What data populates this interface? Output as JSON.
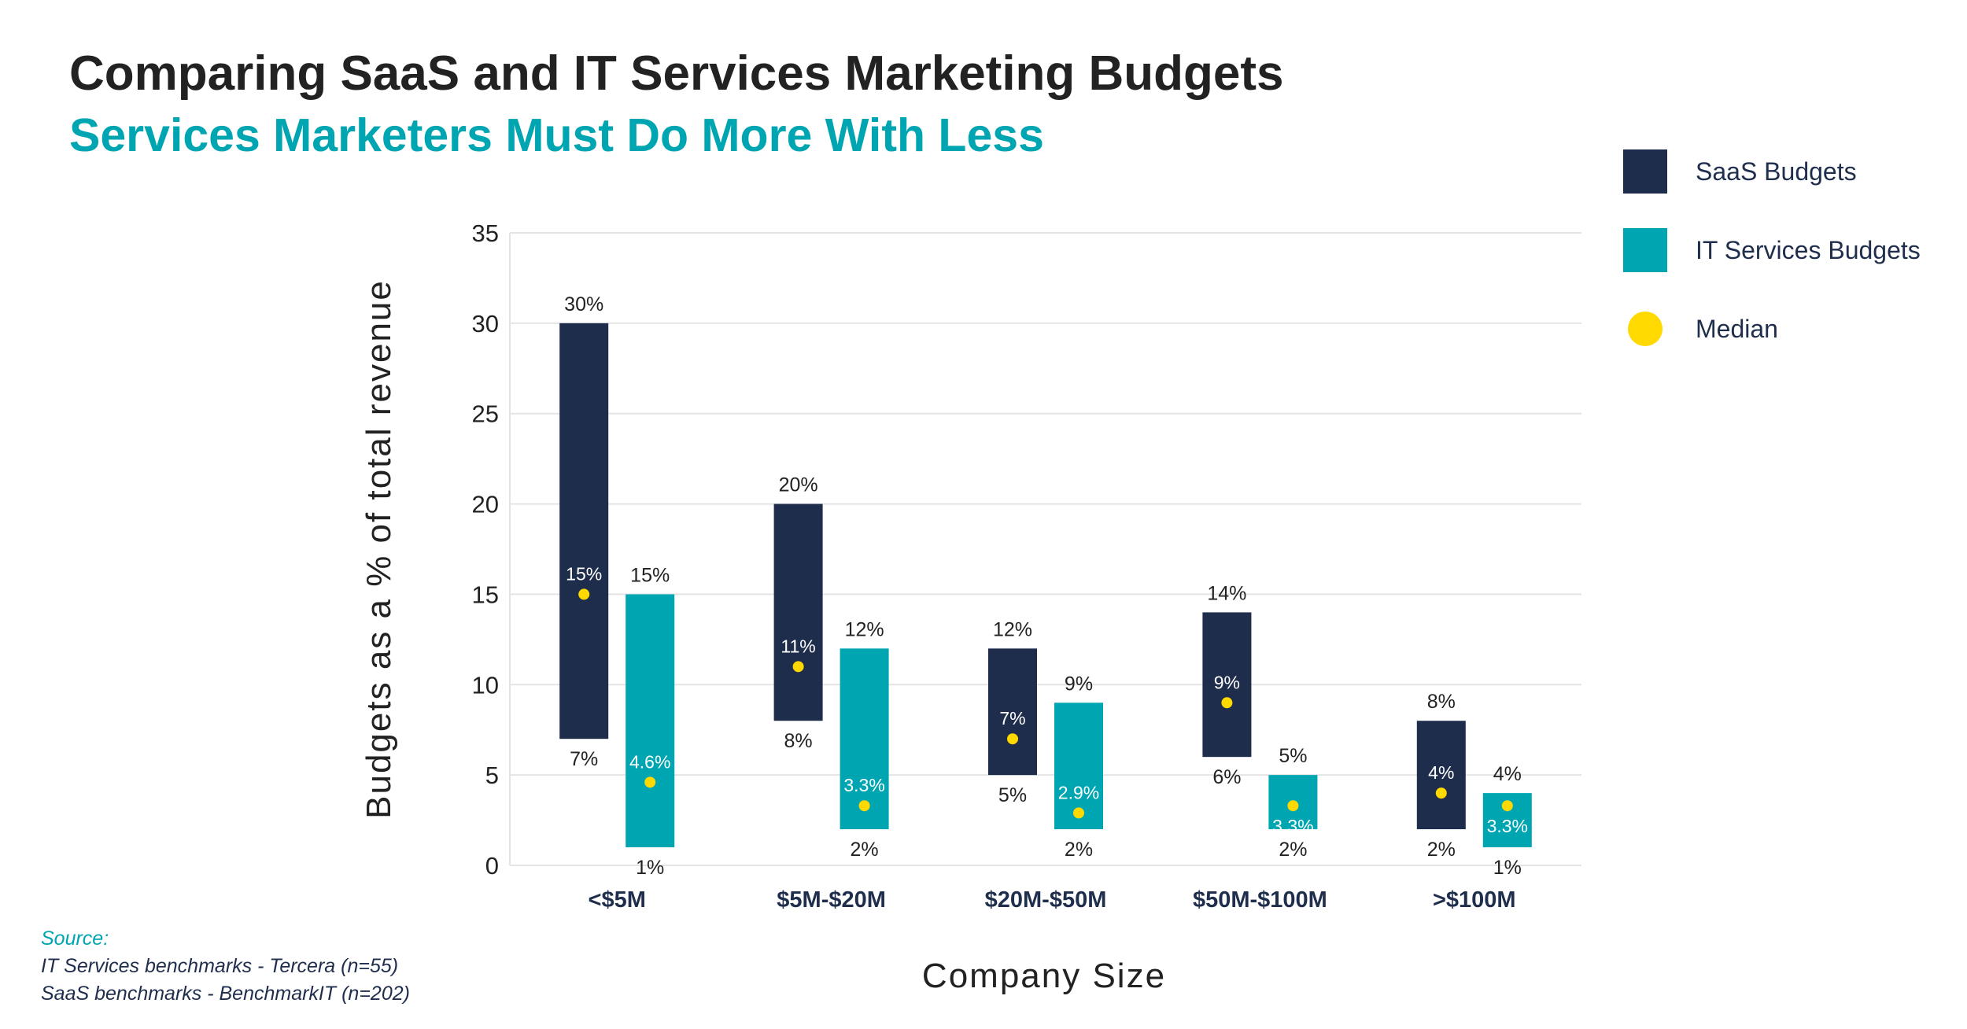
{
  "header": {
    "title": "Comparing SaaS and IT Services Marketing Budgets",
    "subtitle": "Services Marketers Must Do More With Less"
  },
  "legend": {
    "items": [
      {
        "label": "SaaS Budgets",
        "color": "#1f2d4d",
        "shape": "square"
      },
      {
        "label": "IT Services Budgets",
        "color": "#00a5b2",
        "shape": "square"
      },
      {
        "label": "Median",
        "color": "#ffd900",
        "shape": "circle"
      }
    ]
  },
  "source": {
    "heading": "Source:",
    "lines": [
      "IT Services benchmarks - Tercera (n=55)",
      "SaaS benchmarks - BenchmarkIT (n=202)"
    ]
  },
  "chart_data": {
    "type": "bar",
    "subtype": "floating range bar with median marker",
    "xlabel": "Company Size",
    "ylabel": "Budgets as a % of total revenue",
    "ylim": [
      0,
      35
    ],
    "yticks": [
      0,
      5,
      10,
      15,
      20,
      25,
      30,
      35
    ],
    "grid": true,
    "legend_position": "top-right",
    "categories": [
      "<$5M",
      "$5M-$20M",
      "$20M-$50M",
      "$50M-$100M",
      ">$100M"
    ],
    "series": [
      {
        "name": "SaaS Budgets",
        "color": "#1f2d4d",
        "low": [
          7,
          8,
          5,
          6,
          2
        ],
        "high": [
          30,
          20,
          12,
          14,
          8
        ],
        "median": [
          15,
          11,
          7,
          9,
          4
        ],
        "low_labels": [
          "7%",
          "8%",
          "5%",
          "6%",
          "2%"
        ],
        "high_labels": [
          "30%",
          "20%",
          "12%",
          "14%",
          "8%"
        ],
        "median_labels": [
          "15%",
          "11%",
          "7%",
          "9%",
          "4%"
        ]
      },
      {
        "name": "IT Services Budgets",
        "color": "#00a5b2",
        "low": [
          1,
          2,
          2,
          2,
          1
        ],
        "high": [
          15,
          12,
          9,
          5,
          4
        ],
        "median": [
          4.6,
          3.3,
          2.9,
          3.3,
          3.3
        ],
        "low_labels": [
          "1%",
          "2%",
          "2%",
          "2%",
          "1%"
        ],
        "high_labels": [
          "15%",
          "12%",
          "9%",
          "5%",
          "4%"
        ],
        "median_labels": [
          "4.6%",
          "3.3%",
          "2.9%",
          "3.3%",
          "3.3%"
        ]
      }
    ],
    "median_color": "#ffd900"
  }
}
